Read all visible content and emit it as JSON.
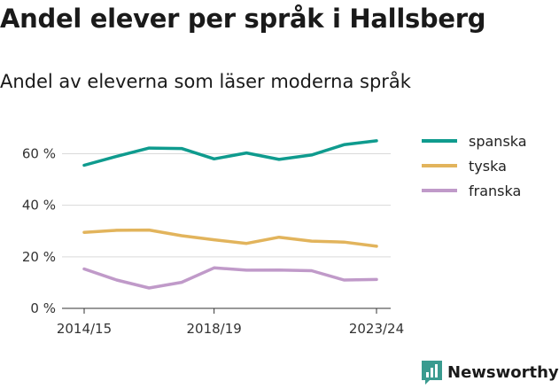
{
  "chart_data": {
    "type": "line",
    "title": "Andel elever per språk i Hallsberg",
    "subtitle": "Andel av eleverna som läser moderna språk",
    "xlabel": "",
    "ylabel": "",
    "x": [
      "2014/15",
      "2015/16",
      "2016/17",
      "2017/18",
      "2018/19",
      "2019/20",
      "2020/21",
      "2021/22",
      "2022/23",
      "2023/24"
    ],
    "x_tick_labels": [
      "2014/15",
      "2018/19",
      "2023/24"
    ],
    "y_ticks": [
      0,
      20,
      40,
      60
    ],
    "y_tick_labels": [
      "0 %",
      "20 %",
      "40 %",
      "60 %"
    ],
    "ylim": [
      0,
      66
    ],
    "grid": true,
    "legend_position": "right",
    "series": [
      {
        "name": "spanska",
        "color": "#0f9b8e",
        "values": [
          55.5,
          59.0,
          62.2,
          62.0,
          58.0,
          60.3,
          57.8,
          59.5,
          63.5,
          65.0
        ]
      },
      {
        "name": "tyska",
        "color": "#e2b45c",
        "values": [
          29.5,
          30.3,
          30.4,
          28.2,
          26.6,
          25.2,
          27.6,
          26.1,
          25.7,
          24.1
        ]
      },
      {
        "name": "franska",
        "color": "#c09ac9",
        "values": [
          15.3,
          11.0,
          7.9,
          10.1,
          15.7,
          14.8,
          14.9,
          14.6,
          11.0,
          11.2
        ]
      }
    ]
  },
  "branding": {
    "name": "Newsworthy",
    "logo_color": "#3a9b8f",
    "logo_icon": "bar-chart-speech-icon"
  }
}
